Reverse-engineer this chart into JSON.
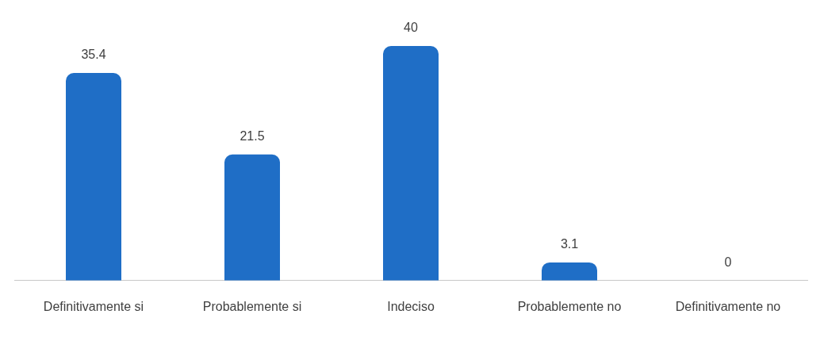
{
  "chart_data": {
    "type": "bar",
    "categories": [
      "Definitivamente si",
      "Probablemente si",
      "Indeciso",
      "Probablemente no",
      "Definitivamente no"
    ],
    "values": [
      35.4,
      21.5,
      40,
      3.1,
      0
    ],
    "color": "#1f6ec6",
    "data_labels": true
  }
}
